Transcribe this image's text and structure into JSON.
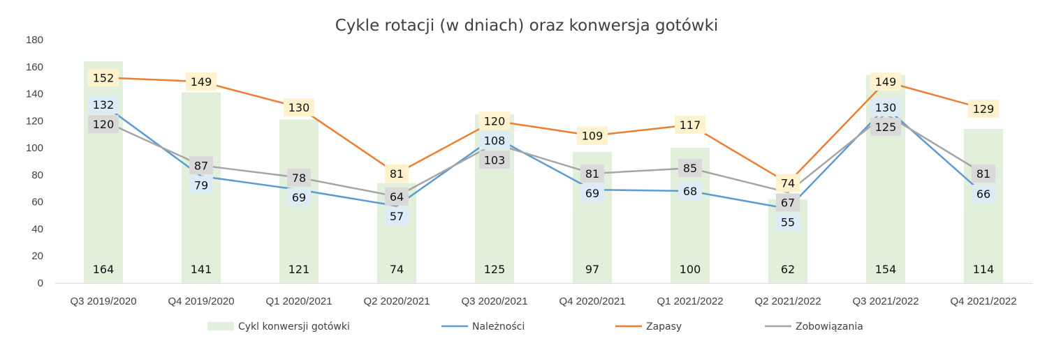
{
  "chart_data": {
    "type": "bar+line",
    "title": "Cykle rotacji (w dniach) oraz konwersja gotówki",
    "xlabel": "",
    "ylabel": "",
    "ylim": [
      0,
      180
    ],
    "yticks": [
      0,
      20,
      40,
      60,
      80,
      100,
      120,
      140,
      160,
      180
    ],
    "grid": false,
    "legend_position": "bottom",
    "categories": [
      "Q3 2019/2020",
      "Q4 2019/2020",
      "Q1 2020/2021",
      "Q2 2020/2021",
      "Q3 2020/2021",
      "Q4 2020/2021",
      "Q1 2021/2022",
      "Q2 2021/2022",
      "Q3 2021/2022",
      "Q4 2021/2022"
    ],
    "series": [
      {
        "name": "Cykl konwersji gotówki",
        "kind": "bar",
        "color": "#e2efda",
        "label_bg": "",
        "values": [
          164,
          141,
          121,
          74,
          125,
          97,
          100,
          62,
          154,
          114
        ]
      },
      {
        "name": "Należności",
        "kind": "line",
        "color": "#5b9bd5",
        "label_bg": "#ddebf7",
        "values": [
          132,
          79,
          69,
          57,
          108,
          69,
          68,
          55,
          130,
          66
        ]
      },
      {
        "name": "Zapasy",
        "kind": "line",
        "color": "#ed7d31",
        "label_bg": "#fff2cc",
        "values": [
          152,
          149,
          130,
          81,
          120,
          109,
          117,
          74,
          149,
          129
        ]
      },
      {
        "name": "Zobowiązania",
        "kind": "line",
        "color": "#a5a5a5",
        "label_bg": "#d9d9d9",
        "values": [
          120,
          87,
          78,
          64,
          103,
          81,
          85,
          67,
          125,
          81
        ]
      }
    ]
  }
}
